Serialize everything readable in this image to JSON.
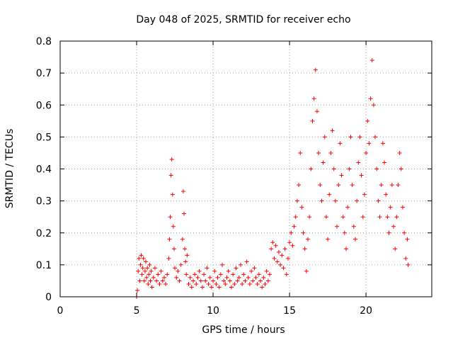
{
  "chart_data": {
    "type": "scatter",
    "title": "Day 048 of 2025, SRMTID for receiver echo",
    "xlabel": "GPS time / hours",
    "ylabel": "SRMTID / TECUs",
    "xlim": [
      0,
      24.3
    ],
    "ylim": [
      0,
      0.8
    ],
    "xticks": [
      0,
      5,
      10,
      15,
      20
    ],
    "yticks": [
      0,
      0.1,
      0.2,
      0.3,
      0.4,
      0.5,
      0.6,
      0.7,
      0.8
    ],
    "grid": true,
    "marker": "+",
    "color": "#ff0000",
    "series": [
      {
        "name": "echo",
        "points": [
          [
            5.0,
            0.0
          ],
          [
            5.05,
            0.02
          ],
          [
            5.1,
            0.08
          ],
          [
            5.15,
            0.12
          ],
          [
            5.2,
            0.05
          ],
          [
            5.25,
            0.1
          ],
          [
            5.3,
            0.13
          ],
          [
            5.35,
            0.07
          ],
          [
            5.4,
            0.09
          ],
          [
            5.45,
            0.12
          ],
          [
            5.5,
            0.05
          ],
          [
            5.55,
            0.08
          ],
          [
            5.6,
            0.11
          ],
          [
            5.65,
            0.06
          ],
          [
            5.7,
            0.09
          ],
          [
            5.75,
            0.04
          ],
          [
            5.8,
            0.07
          ],
          [
            5.85,
            0.1
          ],
          [
            5.9,
            0.05
          ],
          [
            5.95,
            0.08
          ],
          [
            6.0,
            0.03
          ],
          [
            6.1,
            0.06
          ],
          [
            6.2,
            0.09
          ],
          [
            6.3,
            0.05
          ],
          [
            6.4,
            0.07
          ],
          [
            6.5,
            0.04
          ],
          [
            6.6,
            0.08
          ],
          [
            6.7,
            0.05
          ],
          [
            6.8,
            0.06
          ],
          [
            6.9,
            0.04
          ],
          [
            7.0,
            0.07
          ],
          [
            7.1,
            0.12
          ],
          [
            7.15,
            0.18
          ],
          [
            7.2,
            0.25
          ],
          [
            7.25,
            0.38
          ],
          [
            7.3,
            0.43
          ],
          [
            7.35,
            0.32
          ],
          [
            7.4,
            0.22
          ],
          [
            7.45,
            0.15
          ],
          [
            7.5,
            0.09
          ],
          [
            7.6,
            0.06
          ],
          [
            7.7,
            0.08
          ],
          [
            7.8,
            0.05
          ],
          [
            7.9,
            0.1
          ],
          [
            8.0,
            0.18
          ],
          [
            8.05,
            0.33
          ],
          [
            8.1,
            0.26
          ],
          [
            8.15,
            0.15
          ],
          [
            8.2,
            0.11
          ],
          [
            8.25,
            0.07
          ],
          [
            8.3,
            0.13
          ],
          [
            8.4,
            0.04
          ],
          [
            8.5,
            0.06
          ],
          [
            8.6,
            0.03
          ],
          [
            8.7,
            0.05
          ],
          [
            8.8,
            0.07
          ],
          [
            8.9,
            0.04
          ],
          [
            9.0,
            0.06
          ],
          [
            9.1,
            0.08
          ],
          [
            9.2,
            0.05
          ],
          [
            9.3,
            0.03
          ],
          [
            9.4,
            0.07
          ],
          [
            9.5,
            0.05
          ],
          [
            9.6,
            0.09
          ],
          [
            9.7,
            0.04
          ],
          [
            9.8,
            0.06
          ],
          [
            9.9,
            0.03
          ],
          [
            10.0,
            0.05
          ],
          [
            10.1,
            0.08
          ],
          [
            10.2,
            0.04
          ],
          [
            10.3,
            0.06
          ],
          [
            10.4,
            0.03
          ],
          [
            10.5,
            0.07
          ],
          [
            10.6,
            0.1
          ],
          [
            10.7,
            0.05
          ],
          [
            10.8,
            0.04
          ],
          [
            10.9,
            0.06
          ],
          [
            11.0,
            0.08
          ],
          [
            11.1,
            0.05
          ],
          [
            11.2,
            0.03
          ],
          [
            11.3,
            0.07
          ],
          [
            11.4,
            0.04
          ],
          [
            11.5,
            0.09
          ],
          [
            11.6,
            0.05
          ],
          [
            11.7,
            0.06
          ],
          [
            11.8,
            0.1
          ],
          [
            11.9,
            0.04
          ],
          [
            12.0,
            0.07
          ],
          [
            12.1,
            0.05
          ],
          [
            12.2,
            0.11
          ],
          [
            12.3,
            0.06
          ],
          [
            12.4,
            0.04
          ],
          [
            12.5,
            0.08
          ],
          [
            12.6,
            0.05
          ],
          [
            12.7,
            0.09
          ],
          [
            12.8,
            0.06
          ],
          [
            12.9,
            0.04
          ],
          [
            13.0,
            0.07
          ],
          [
            13.1,
            0.05
          ],
          [
            13.2,
            0.03
          ],
          [
            13.3,
            0.06
          ],
          [
            13.4,
            0.04
          ],
          [
            13.5,
            0.08
          ],
          [
            13.6,
            0.05
          ],
          [
            13.7,
            0.07
          ],
          [
            13.8,
            0.15
          ],
          [
            13.9,
            0.17
          ],
          [
            14.0,
            0.12
          ],
          [
            14.1,
            0.16
          ],
          [
            14.2,
            0.11
          ],
          [
            14.3,
            0.14
          ],
          [
            14.4,
            0.1
          ],
          [
            14.5,
            0.13
          ],
          [
            14.6,
            0.09
          ],
          [
            14.7,
            0.15
          ],
          [
            14.8,
            0.07
          ],
          [
            14.9,
            0.12
          ],
          [
            15.0,
            0.17
          ],
          [
            15.1,
            0.2
          ],
          [
            15.2,
            0.16
          ],
          [
            15.3,
            0.22
          ],
          [
            15.4,
            0.25
          ],
          [
            15.5,
            0.3
          ],
          [
            15.6,
            0.35
          ],
          [
            15.7,
            0.45
          ],
          [
            15.8,
            0.28
          ],
          [
            15.9,
            0.2
          ],
          [
            16.0,
            0.15
          ],
          [
            16.1,
            0.08
          ],
          [
            16.2,
            0.18
          ],
          [
            16.3,
            0.25
          ],
          [
            16.4,
            0.4
          ],
          [
            16.5,
            0.55
          ],
          [
            16.6,
            0.62
          ],
          [
            16.7,
            0.71
          ],
          [
            16.8,
            0.58
          ],
          [
            16.9,
            0.45
          ],
          [
            17.0,
            0.35
          ],
          [
            17.1,
            0.3
          ],
          [
            17.2,
            0.42
          ],
          [
            17.3,
            0.5
          ],
          [
            17.4,
            0.25
          ],
          [
            17.5,
            0.18
          ],
          [
            17.6,
            0.32
          ],
          [
            17.7,
            0.45
          ],
          [
            17.8,
            0.52
          ],
          [
            17.9,
            0.4
          ],
          [
            18.0,
            0.3
          ],
          [
            18.1,
            0.22
          ],
          [
            18.2,
            0.35
          ],
          [
            18.3,
            0.48
          ],
          [
            18.4,
            0.38
          ],
          [
            18.5,
            0.25
          ],
          [
            18.6,
            0.2
          ],
          [
            18.7,
            0.15
          ],
          [
            18.8,
            0.28
          ],
          [
            18.9,
            0.4
          ],
          [
            19.0,
            0.5
          ],
          [
            19.1,
            0.35
          ],
          [
            19.2,
            0.22
          ],
          [
            19.3,
            0.18
          ],
          [
            19.4,
            0.3
          ],
          [
            19.5,
            0.42
          ],
          [
            19.6,
            0.5
          ],
          [
            19.7,
            0.38
          ],
          [
            19.8,
            0.25
          ],
          [
            19.9,
            0.32
          ],
          [
            20.0,
            0.45
          ],
          [
            20.1,
            0.55
          ],
          [
            20.2,
            0.48
          ],
          [
            20.3,
            0.62
          ],
          [
            20.4,
            0.74
          ],
          [
            20.5,
            0.6
          ],
          [
            20.6,
            0.5
          ],
          [
            20.7,
            0.4
          ],
          [
            20.8,
            0.3
          ],
          [
            20.9,
            0.25
          ],
          [
            21.0,
            0.35
          ],
          [
            21.1,
            0.48
          ],
          [
            21.2,
            0.42
          ],
          [
            21.3,
            0.32
          ],
          [
            21.4,
            0.25
          ],
          [
            21.5,
            0.2
          ],
          [
            21.6,
            0.28
          ],
          [
            21.7,
            0.35
          ],
          [
            21.8,
            0.22
          ],
          [
            21.9,
            0.15
          ],
          [
            22.0,
            0.25
          ],
          [
            22.1,
            0.35
          ],
          [
            22.2,
            0.45
          ],
          [
            22.3,
            0.4
          ],
          [
            22.4,
            0.28
          ],
          [
            22.5,
            0.2
          ],
          [
            22.6,
            0.12
          ],
          [
            22.7,
            0.18
          ],
          [
            22.75,
            0.1
          ]
        ]
      }
    ]
  }
}
